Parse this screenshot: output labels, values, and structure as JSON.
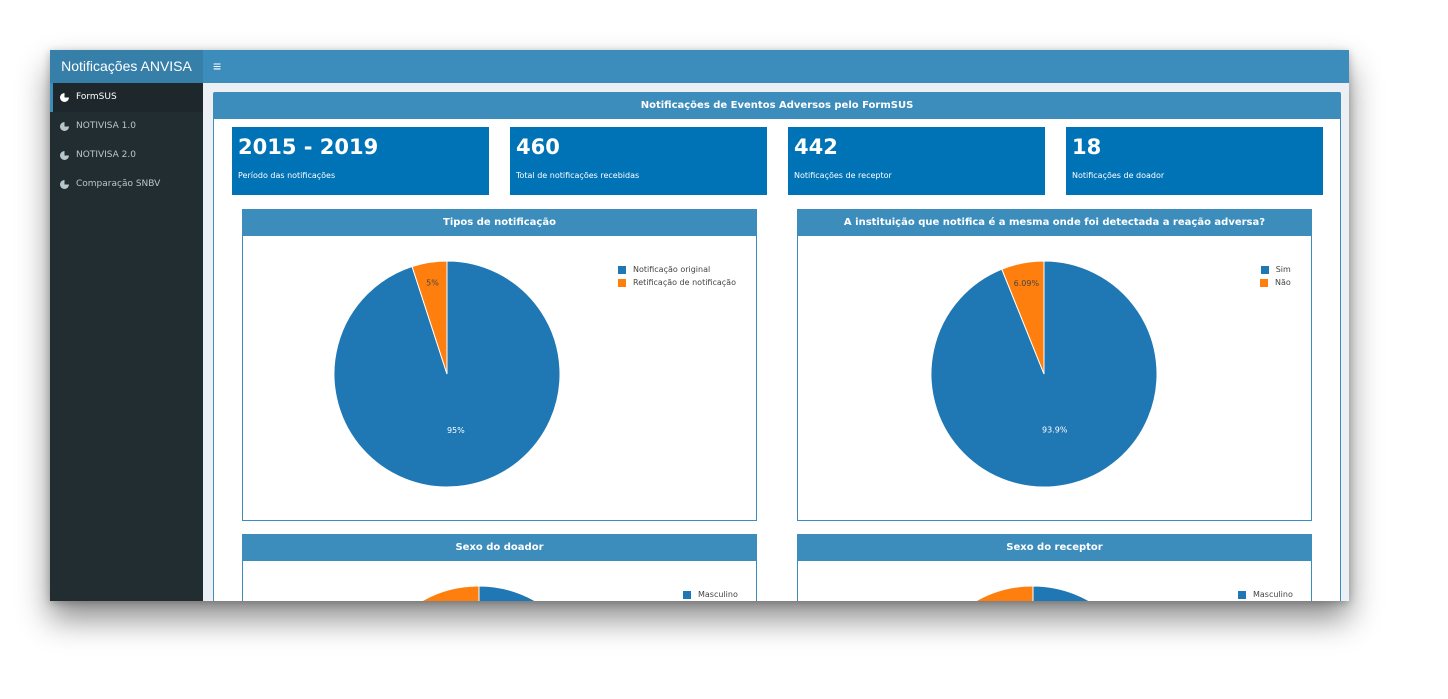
{
  "app": {
    "brand": "Notificações ANVISA",
    "menu_icon": "hamburger-icon"
  },
  "sidebar": {
    "items": [
      {
        "label": "FormSUS",
        "icon": "pie-chart-icon",
        "active": true
      },
      {
        "label": "NOTIVISA 1.0",
        "icon": "pie-chart-icon",
        "active": false
      },
      {
        "label": "NOTIVISA 2.0",
        "icon": "pie-chart-icon",
        "active": false
      },
      {
        "label": "Comparação SNBV",
        "icon": "pie-chart-icon",
        "active": false
      }
    ]
  },
  "main": {
    "title": "Notificações de Eventos Adversos pelo FormSUS",
    "value_boxes": [
      {
        "value": "2015 - 2019",
        "label": "Período das notificações"
      },
      {
        "value": "460",
        "label": "Total de notificações recebidas"
      },
      {
        "value": "442",
        "label": "Notificações de receptor"
      },
      {
        "value": "18",
        "label": "Notificações de doador"
      }
    ]
  },
  "colors": {
    "blue": "#1f77b4",
    "orange": "#ff7f0e",
    "header": "#3c8dbc",
    "value_box": "#0073b7"
  },
  "chart_data": [
    {
      "type": "pie",
      "title": "Tipos de notificação",
      "labels": [
        "Notificação original",
        "Retificação de notificação"
      ],
      "values": [
        95,
        5
      ],
      "value_labels": [
        "95%",
        "5%"
      ],
      "colors": [
        "#1f77b4",
        "#ff7f0e"
      ],
      "legend": "top-right"
    },
    {
      "type": "pie",
      "title": "A instituição que notifica é a mesma onde foi detectada a reação adversa?",
      "labels": [
        "Sim",
        "Não"
      ],
      "values": [
        93.9,
        6.09
      ],
      "value_labels": [
        "93.9%",
        "6.09%"
      ],
      "colors": [
        "#1f77b4",
        "#ff7f0e"
      ],
      "legend": "top-right"
    },
    {
      "type": "pie",
      "title": "Sexo do doador",
      "labels": [
        "Masculino"
      ],
      "colors": [
        "#1f77b4",
        "#ff7f0e"
      ],
      "legend": "top-right"
    },
    {
      "type": "pie",
      "title": "Sexo do receptor",
      "labels": [
        "Masculino"
      ],
      "colors": [
        "#1f77b4",
        "#ff7f0e"
      ],
      "legend": "top-right"
    }
  ]
}
